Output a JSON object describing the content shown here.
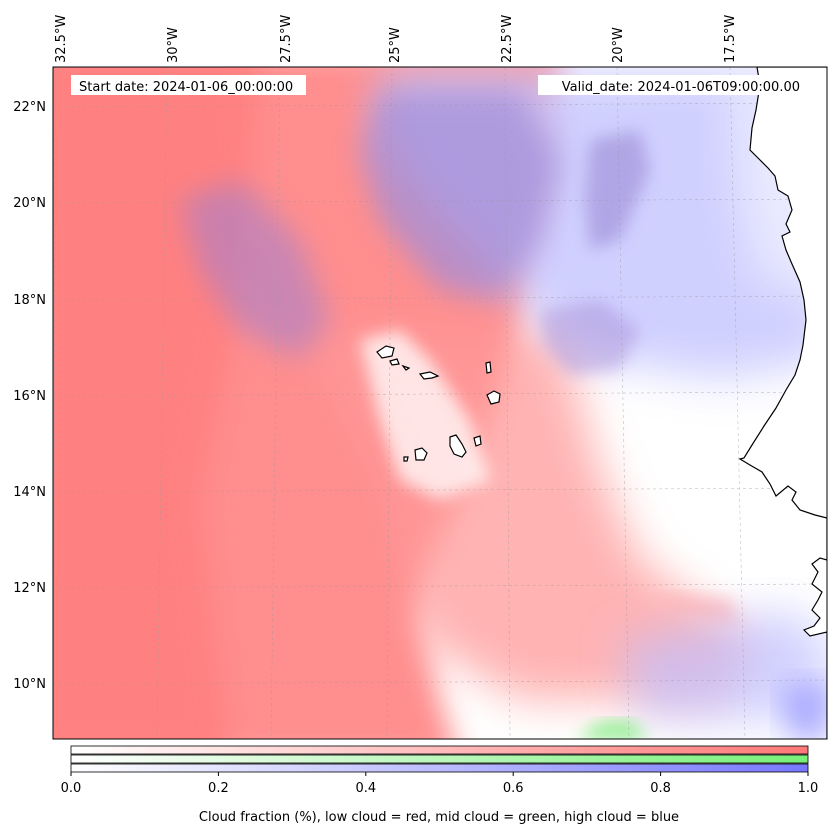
{
  "map": {
    "start_date_label": "Start date: 2024-01-06_00:00:00",
    "valid_date_label": "Valid_date: 2024-01-06T09:00:00.00",
    "longitude_labels": [
      "32.5°W",
      "30°W",
      "27.5°W",
      "25°W",
      "22.5°W",
      "20°W",
      "17.5°W"
    ],
    "latitude_labels": [
      "22°N",
      "20°N",
      "18°N",
      "16°N",
      "14°N",
      "12°N",
      "10°N"
    ],
    "extent": {
      "lon_min": -32.6,
      "lon_max": -15.0,
      "lat_min": 8.8,
      "lat_max": 22.8
    },
    "layers": {
      "low_cloud_color": "#ff8080",
      "mid_cloud_color": "#80f080",
      "high_cloud_color": "#8080ff",
      "land_color": "#ffffff",
      "coastline_color": "#000000"
    }
  },
  "colorbar": {
    "title": "Cloud fraction (%), low cloud = red, mid cloud = green, high cloud = blue",
    "ticks": [
      "0.0",
      "0.2",
      "0.4",
      "0.6",
      "0.8",
      "1.0"
    ],
    "range": [
      0.0,
      1.0
    ],
    "bars": [
      {
        "name": "low cloud",
        "color": "#ff7878"
      },
      {
        "name": "mid cloud",
        "color": "#78f078"
      },
      {
        "name": "high cloud",
        "color": "#7878ff"
      }
    ]
  }
}
